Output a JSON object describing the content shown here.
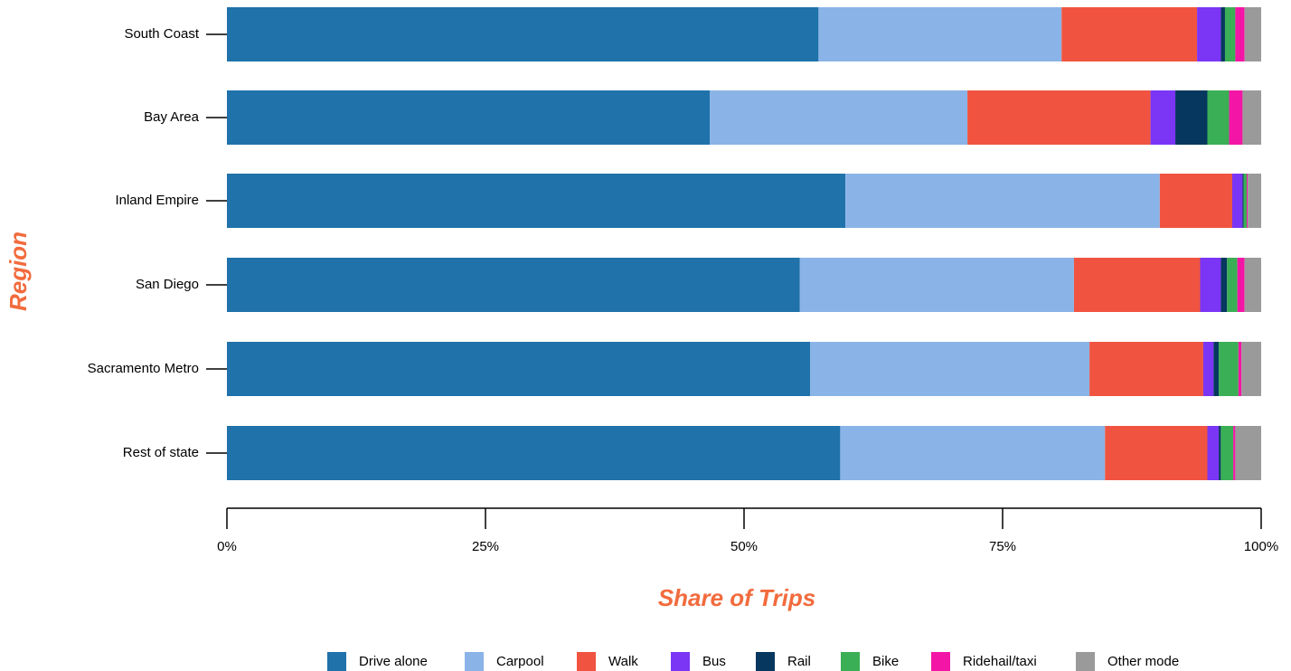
{
  "chart_data": {
    "type": "stacked-bar-horizontal",
    "x_label": "Share of Trips",
    "y_label": "Region",
    "categories": [
      "South Coast",
      "Bay Area",
      "Inland Empire",
      "San Diego",
      "Sacramento Metro",
      "Rest of state"
    ],
    "series": [
      {
        "name": "Drive alone",
        "color": "#1f72aa",
        "values": [
          57.2,
          46.7,
          59.8,
          55.4,
          56.4,
          59.3
        ]
      },
      {
        "name": "Carpool",
        "color": "#8ab4e7",
        "values": [
          23.5,
          24.9,
          30.4,
          26.5,
          27.0,
          25.6
        ]
      },
      {
        "name": "Walk",
        "color": "#f05440",
        "values": [
          13.1,
          17.7,
          7.0,
          12.2,
          11.0,
          9.9
        ]
      },
      {
        "name": "Bus",
        "color": "#7b35f5",
        "values": [
          2.3,
          2.4,
          1.0,
          2.0,
          1.0,
          1.1
        ]
      },
      {
        "name": "Rail",
        "color": "#06375e",
        "values": [
          0.4,
          3.1,
          0.1,
          0.6,
          0.5,
          0.2
        ]
      },
      {
        "name": "Bike",
        "color": "#3aaf55",
        "values": [
          1.0,
          2.1,
          0.3,
          1.0,
          1.9,
          1.2
        ]
      },
      {
        "name": "Ridehail/taxi",
        "color": "#f316a6",
        "values": [
          0.9,
          1.3,
          0.1,
          0.7,
          0.3,
          0.2
        ]
      },
      {
        "name": "Other mode",
        "color": "#9a9a9a",
        "values": [
          1.6,
          1.8,
          1.3,
          1.6,
          1.9,
          2.5
        ]
      }
    ],
    "xlim": [
      0,
      100
    ],
    "xticks": [
      {
        "value": 0,
        "label": "0%"
      },
      {
        "value": 25,
        "label": "25%"
      },
      {
        "value": 50,
        "label": "50%"
      },
      {
        "value": 75,
        "label": "75%"
      },
      {
        "value": 100,
        "label": "100%"
      }
    ],
    "legend": "bottom"
  }
}
